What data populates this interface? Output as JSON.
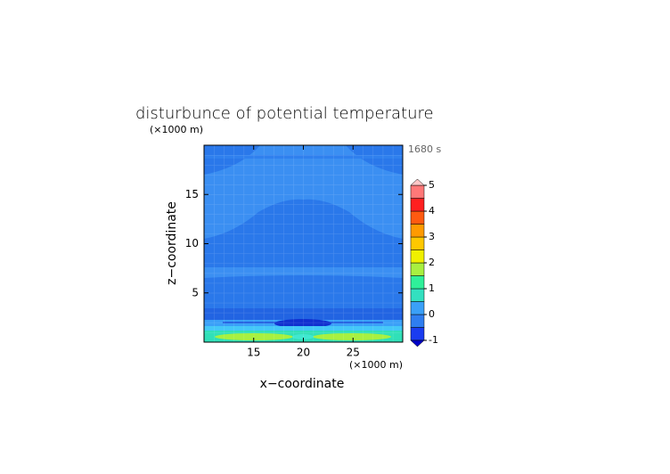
{
  "chart_data": {
    "type": "contour",
    "title": "disturbunce of potential temperature",
    "y_unit": "(×1000 m)",
    "x_unit": "(×1000 m)",
    "time_label": "1680 s",
    "xlabel": "x−coordinate",
    "ylabel": "z−coordinate",
    "xlim": [
      10,
      30
    ],
    "xticks": [
      15,
      20,
      25
    ],
    "ylim": [
      0,
      20
    ],
    "yticks": [
      5,
      10,
      15
    ],
    "colorbar": {
      "levels": [
        -1,
        -0.5,
        0,
        0.5,
        1,
        1.5,
        2,
        2.5,
        3,
        3.5,
        4,
        4.5,
        5
      ],
      "colors": [
        "#1a3cf0",
        "#2f7ef0",
        "#3aa0f8",
        "#33e0c0",
        "#2ff09a",
        "#a8f040",
        "#f0f000",
        "#ffc800",
        "#ff9a00",
        "#ff5a10",
        "#ff2020",
        "#ff7878"
      ],
      "under_color": "#0000c8",
      "over_color": "#ffc8c8",
      "ticks": [
        -1,
        0,
        1,
        2,
        3,
        4,
        5
      ]
    }
  }
}
